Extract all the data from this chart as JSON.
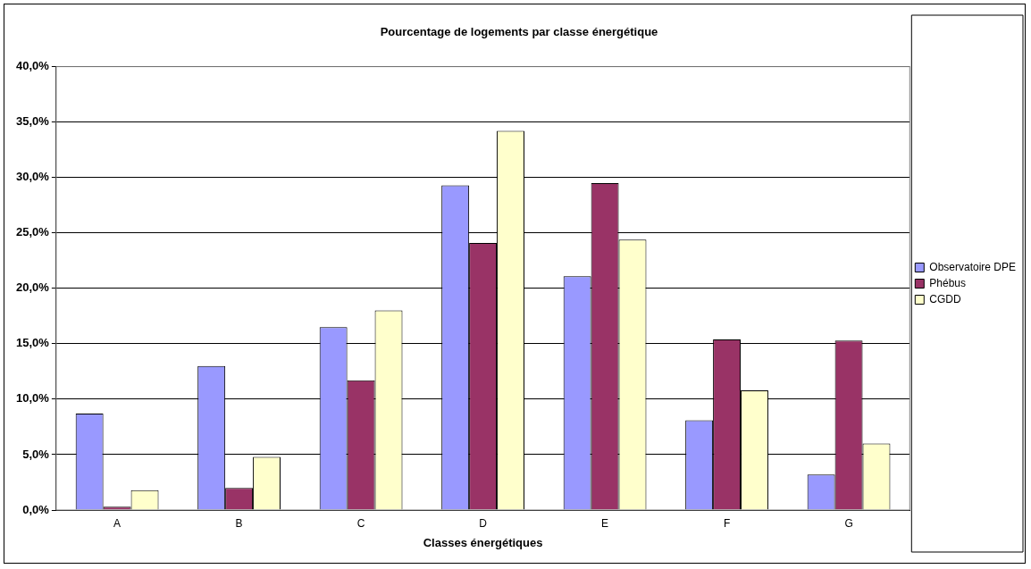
{
  "chart_data": {
    "type": "bar",
    "title": "Pourcentage de logements par classe énergétique",
    "xlabel": "Classes énergétiques",
    "categories": [
      "A",
      "B",
      "C",
      "D",
      "E",
      "F",
      "G"
    ],
    "series": [
      {
        "name": "Observatoire DPE",
        "color": "#9999ff",
        "values": [
          8.7,
          13.0,
          16.5,
          29.3,
          21.1,
          8.1,
          3.2
        ]
      },
      {
        "name": "Phébus",
        "color": "#993366",
        "values": [
          0.3,
          2.0,
          11.7,
          24.1,
          29.5,
          15.4,
          15.3
        ]
      },
      {
        "name": "CGDD",
        "color": "#ffffcc",
        "values": [
          1.8,
          4.8,
          18.0,
          34.2,
          24.4,
          10.8,
          6.0
        ]
      }
    ],
    "ylim": [
      0,
      40
    ],
    "yticks": [
      {
        "value": 0,
        "label": "0,0%"
      },
      {
        "value": 5,
        "label": "5,0%"
      },
      {
        "value": 10,
        "label": "10,0%"
      },
      {
        "value": 15,
        "label": "15,0%"
      },
      {
        "value": 20,
        "label": "20,0%"
      },
      {
        "value": 25,
        "label": "25,0%"
      },
      {
        "value": 30,
        "label": "30,0%"
      },
      {
        "value": 35,
        "label": "35,0%"
      },
      {
        "value": 40,
        "label": "40,0%"
      }
    ],
    "grid": "y",
    "legend": "right"
  }
}
